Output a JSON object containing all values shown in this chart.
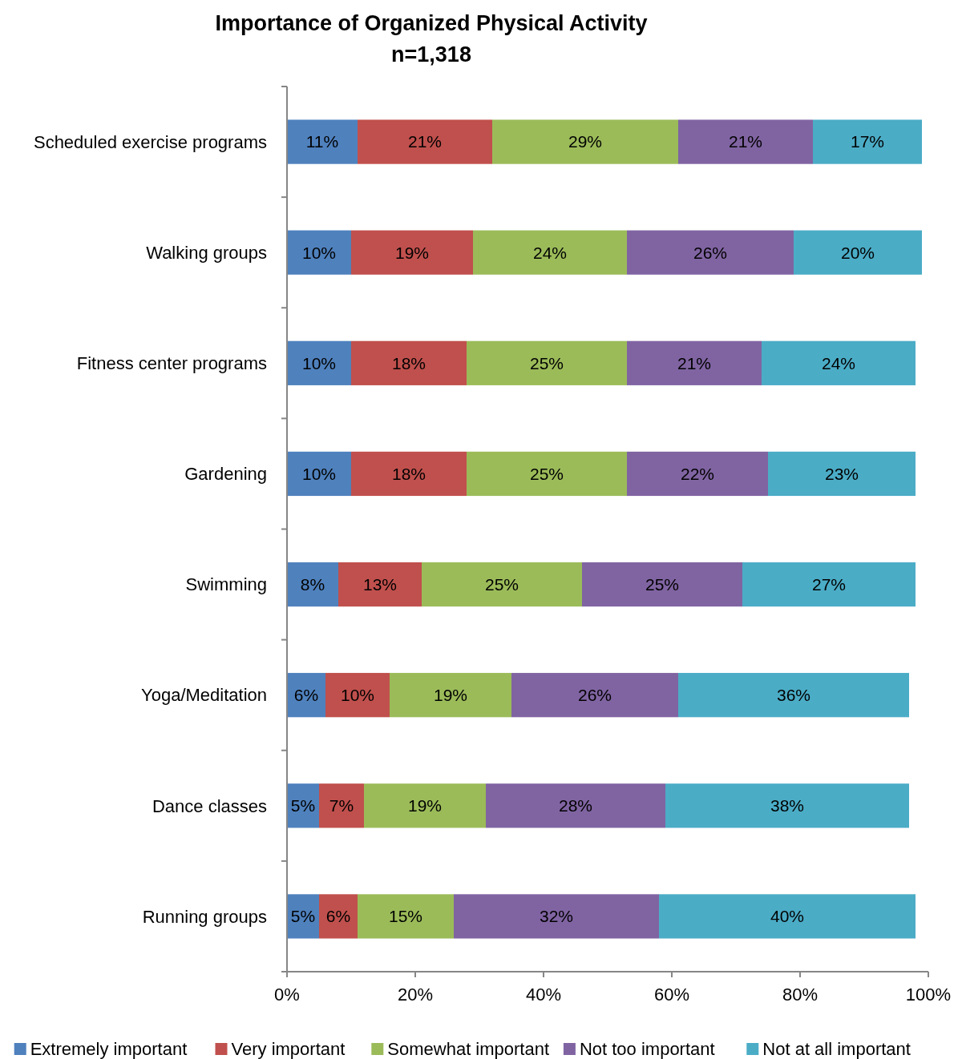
{
  "chart_data": {
    "type": "bar",
    "orientation": "horizontal",
    "stacked": true,
    "title": "Importance of Organized Physical Activity",
    "subtitle": "n=1,318",
    "categories": [
      "Scheduled exercise programs",
      "Walking groups",
      "Fitness center programs",
      "Gardening",
      "Swimming",
      "Yoga/Meditation",
      "Dance classes",
      "Running groups"
    ],
    "series": [
      {
        "name": "Extremely important",
        "color": "#4f81bd",
        "values": [
          11,
          10,
          10,
          10,
          8,
          6,
          5,
          5
        ],
        "value_labels": [
          "11%",
          "10%",
          "10%",
          "10%",
          "8%",
          "6%",
          "5%",
          "5%"
        ]
      },
      {
        "name": "Very important",
        "color": "#c0504d",
        "values": [
          21,
          19,
          18,
          18,
          13,
          10,
          7,
          6
        ],
        "value_labels": [
          "21%",
          "19%",
          "18%",
          "18%",
          "13%",
          "10%",
          "7%",
          "6%"
        ]
      },
      {
        "name": "Somewhat important",
        "color": "#9bbb59",
        "values": [
          29,
          24,
          25,
          25,
          25,
          19,
          19,
          15
        ],
        "value_labels": [
          "29%",
          "24%",
          "25%",
          "25%",
          "25%",
          "19%",
          "19%",
          "15%"
        ]
      },
      {
        "name": "Not too important",
        "color": "#8064a2",
        "values": [
          21,
          26,
          21,
          22,
          25,
          26,
          28,
          32
        ],
        "value_labels": [
          "21%",
          "26%",
          "21%",
          "22%",
          "25%",
          "26%",
          "28%",
          "32%"
        ]
      },
      {
        "name": "Not at all important",
        "color": "#4bacc6",
        "values": [
          17,
          20,
          24,
          23,
          27,
          36,
          38,
          40
        ],
        "value_labels": [
          "17%",
          "20%",
          "24%",
          "23%",
          "27%",
          "36%",
          "38%",
          "40%"
        ]
      }
    ],
    "xlim": [
      0,
      100
    ],
    "xticks": [
      {
        "value": 0,
        "label": "0%"
      },
      {
        "value": 20,
        "label": "20%"
      },
      {
        "value": 40,
        "label": "40%"
      },
      {
        "value": 60,
        "label": "60%"
      },
      {
        "value": 80,
        "label": "80%"
      },
      {
        "value": 100,
        "label": "100%"
      }
    ],
    "grid": false,
    "legend": "bottom"
  }
}
